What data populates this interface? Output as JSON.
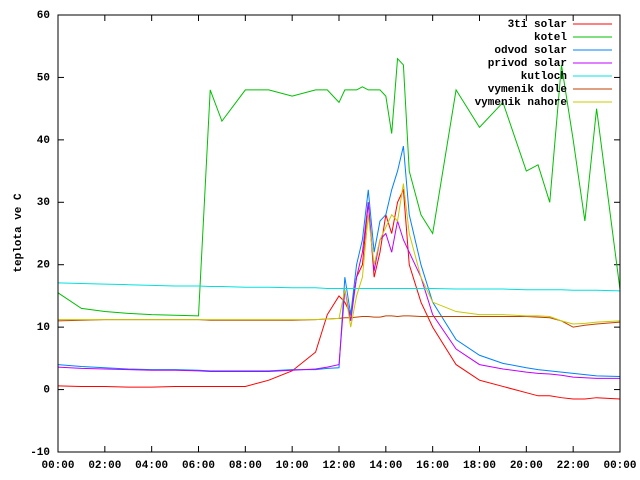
{
  "chart_data": {
    "type": "line",
    "ylabel": "teplota ve C",
    "x": [
      0,
      1,
      2,
      3,
      4,
      5,
      6,
      6.5,
      7,
      8,
      9,
      10,
      11,
      11.5,
      12,
      12.25,
      12.5,
      12.75,
      13,
      13.25,
      13.5,
      13.75,
      14,
      14.25,
      14.5,
      14.75,
      15,
      15.5,
      16,
      17,
      18,
      19,
      20,
      20.5,
      21,
      21.5,
      22,
      22.5,
      23,
      24
    ],
    "xlim": [
      0,
      24
    ],
    "xticks": [
      {
        "value": 0,
        "label": "00:00"
      },
      {
        "value": 2,
        "label": "02:00"
      },
      {
        "value": 4,
        "label": "04:00"
      },
      {
        "value": 6,
        "label": "06:00"
      },
      {
        "value": 8,
        "label": "08:00"
      },
      {
        "value": 10,
        "label": "10:00"
      },
      {
        "value": 12,
        "label": "12:00"
      },
      {
        "value": 14,
        "label": "14:00"
      },
      {
        "value": 16,
        "label": "16:00"
      },
      {
        "value": 18,
        "label": "18:00"
      },
      {
        "value": 20,
        "label": "20:00"
      },
      {
        "value": 22,
        "label": "22:00"
      },
      {
        "value": 24,
        "label": "00:00"
      }
    ],
    "ylim": [
      -10,
      60
    ],
    "yticks": [
      -10,
      0,
      10,
      20,
      30,
      40,
      50,
      60
    ],
    "legend": "top-right",
    "series": [
      {
        "name": "3ti solar",
        "color": "#ff0000",
        "values": [
          0.6,
          0.5,
          0.5,
          0.4,
          0.4,
          0.5,
          0.5,
          0.5,
          0.5,
          0.5,
          1.5,
          3,
          6,
          12,
          15,
          14,
          12,
          18,
          20,
          30,
          18,
          22,
          28,
          25,
          30,
          32,
          20,
          14,
          10,
          4,
          1.5,
          0.5,
          -0.5,
          -1,
          -1,
          -1.3,
          -1.5,
          -1.5,
          -1.3,
          -1.5
        ]
      },
      {
        "name": "kotel",
        "color": "#00c000",
        "values": [
          15.5,
          13,
          12.5,
          12.2,
          12,
          11.9,
          11.8,
          48,
          43,
          48,
          48,
          47,
          48,
          48,
          46,
          48,
          48,
          48,
          48.5,
          48,
          48,
          48,
          47,
          41,
          53,
          52,
          35,
          28,
          25,
          48,
          42,
          46,
          35,
          36,
          30,
          52,
          40,
          27,
          45,
          16
        ]
      },
      {
        "name": "odvod solar",
        "color": "#0080ff",
        "values": [
          4,
          3.7,
          3.5,
          3.3,
          3.2,
          3.2,
          3.1,
          3,
          3,
          3,
          3,
          3.2,
          3.2,
          3.4,
          3.5,
          18,
          12,
          20,
          24,
          32,
          22,
          27,
          28,
          32,
          35,
          39,
          28,
          20,
          14,
          8,
          5.5,
          4.2,
          3.5,
          3.2,
          3,
          2.8,
          2.6,
          2.4,
          2.2,
          2.1
        ]
      },
      {
        "name": "privod solar",
        "color": "#c000ff",
        "values": [
          3.6,
          3.4,
          3.3,
          3.2,
          3.1,
          3.1,
          3,
          2.9,
          2.9,
          2.9,
          2.9,
          3.1,
          3.3,
          3.6,
          4,
          16,
          11,
          18,
          22,
          30,
          19,
          24,
          25,
          22,
          27,
          24,
          22,
          18,
          12,
          6.5,
          4,
          3.3,
          2.8,
          2.6,
          2.5,
          2.3,
          2,
          1.9,
          1.8,
          1.8
        ]
      },
      {
        "name": "kutloch",
        "color": "#00e0e0",
        "values": [
          17.1,
          17,
          16.9,
          16.8,
          16.7,
          16.6,
          16.6,
          16.5,
          16.5,
          16.4,
          16.4,
          16.3,
          16.3,
          16.2,
          16.2,
          16.2,
          16.2,
          16.2,
          16.2,
          16.2,
          16.2,
          16.2,
          16.2,
          16.2,
          16.2,
          16.2,
          16.2,
          16.2,
          16.2,
          16.1,
          16.1,
          16.1,
          16,
          16,
          16,
          16,
          15.9,
          15.9,
          15.9,
          15.8
        ]
      },
      {
        "name": "vymenik dole",
        "color": "#c04000",
        "values": [
          11,
          11.1,
          11.2,
          11.2,
          11.2,
          11.2,
          11.2,
          11.1,
          11.1,
          11.1,
          11.1,
          11.1,
          11.2,
          11.3,
          11.4,
          11.5,
          11.5,
          11.6,
          11.7,
          11.7,
          11.6,
          11.6,
          11.8,
          11.8,
          11.7,
          11.8,
          11.8,
          11.7,
          11.7,
          11.7,
          11.7,
          11.7,
          11.7,
          11.6,
          11.5,
          11,
          10,
          10.3,
          10.5,
          10.8
        ]
      },
      {
        "name": "vymenik nahore",
        "color": "#c8c800",
        "values": [
          11.2,
          11.2,
          11.2,
          11.2,
          11.2,
          11.2,
          11.2,
          11.2,
          11.2,
          11.2,
          11.2,
          11.2,
          11.2,
          11.3,
          11.4,
          16,
          10,
          15,
          18,
          28,
          20,
          24,
          26,
          28,
          27,
          33,
          25,
          18,
          14,
          12.5,
          12,
          12,
          11.8,
          11.8,
          11.7,
          11,
          10.5,
          10.6,
          10.8,
          11
        ]
      }
    ]
  }
}
